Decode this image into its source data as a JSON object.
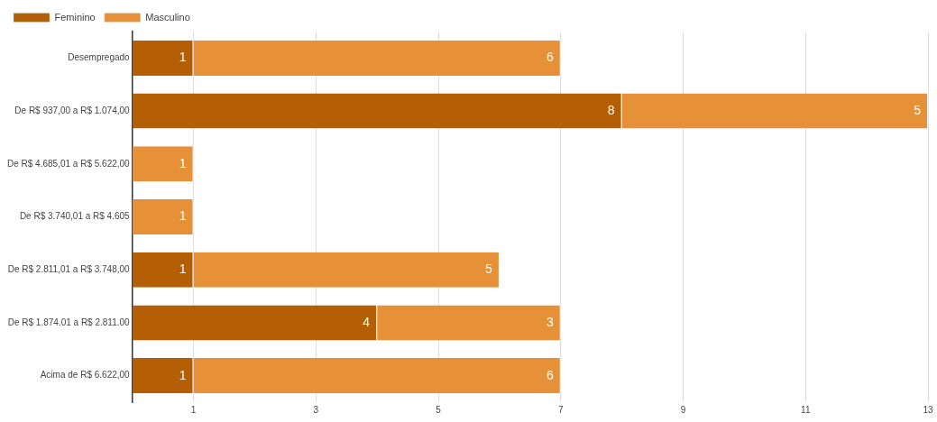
{
  "chart_data": {
    "type": "bar",
    "orientation": "horizontal",
    "stacked": true,
    "categories": [
      "Desempregado",
      "De R$ 937,00 a R$ 1.074,00",
      "De R$ 4.685,01 a R$ 5.622,00",
      "De R$ 3.740,01 a R$ 4.605",
      "De R$ 2.811,01 a R$ 3.748,00",
      "De R$ 1.874.01 a R$ 2.811.00",
      "Acima de R$ 6.622,00"
    ],
    "series": [
      {
        "name": "Feminino",
        "color": "#b45f06",
        "values": [
          1,
          8,
          null,
          null,
          1,
          4,
          1
        ]
      },
      {
        "name": "Masculino",
        "color": "#e69138",
        "values": [
          6,
          5,
          1,
          1,
          5,
          3,
          6
        ]
      }
    ],
    "xlim": [
      0,
      13
    ],
    "xticks": [
      1,
      3,
      5,
      7,
      9,
      11,
      13
    ],
    "grid": "x",
    "legend": "top left",
    "data_labels": true
  }
}
